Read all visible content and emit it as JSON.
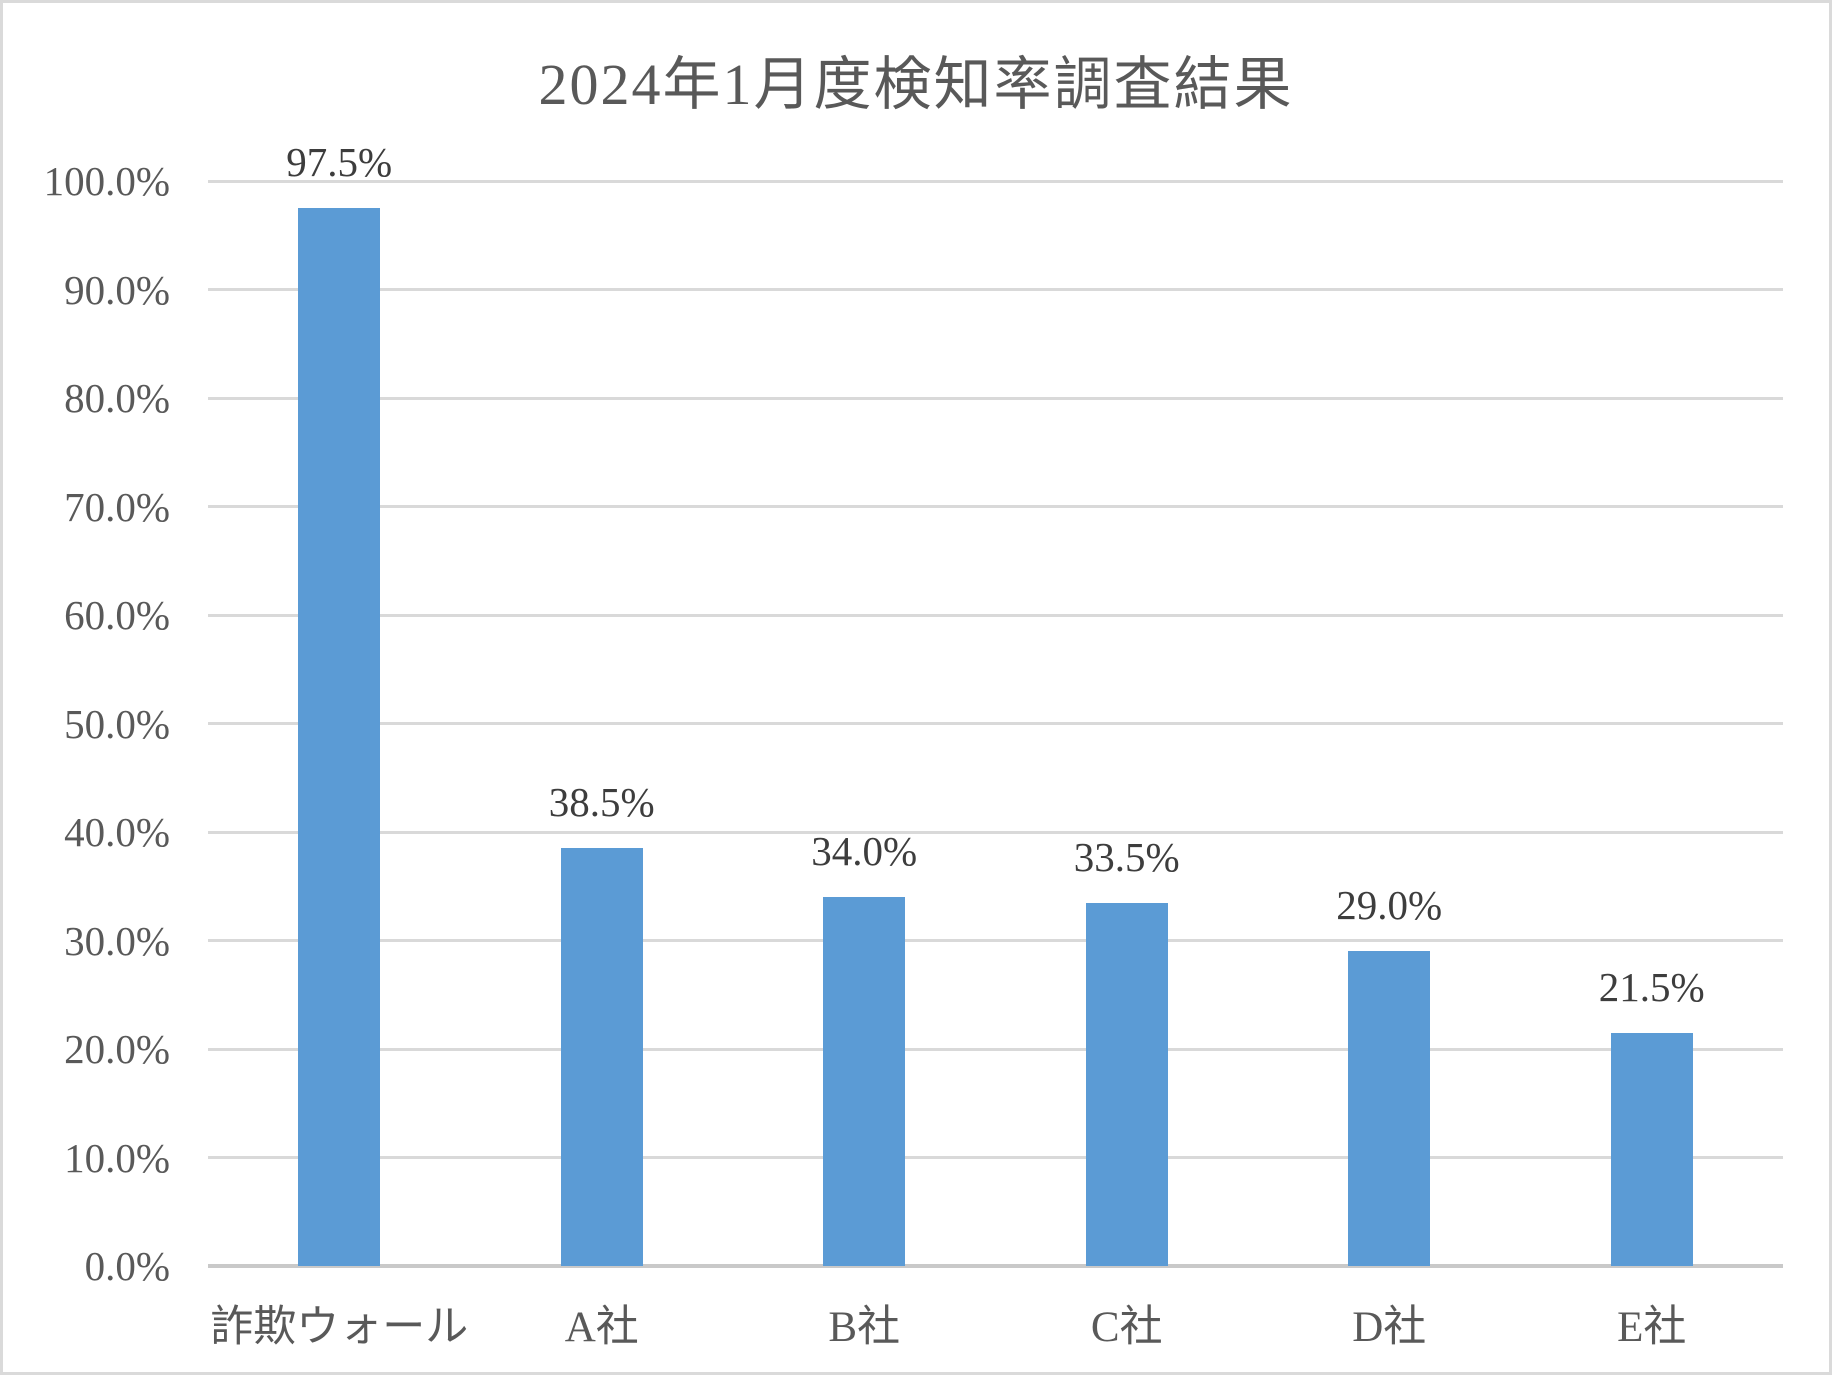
{
  "chart_data": {
    "type": "bar",
    "title": "2024年1月度検知率調査結果",
    "categories": [
      "詐欺ウォール",
      "A社",
      "B社",
      "C社",
      "D社",
      "E社"
    ],
    "values": [
      97.5,
      38.5,
      34.0,
      33.5,
      29.0,
      21.5
    ],
    "data_labels": [
      "97.5%",
      "38.5%",
      "34.0%",
      "33.5%",
      "29.0%",
      "21.5%"
    ],
    "y_axis": {
      "min": 0,
      "max": 100,
      "step": 10,
      "tick_labels": [
        "0.0%",
        "10.0%",
        "20.0%",
        "30.0%",
        "40.0%",
        "50.0%",
        "60.0%",
        "70.0%",
        "80.0%",
        "90.0%",
        "100.0%"
      ]
    },
    "xlabel": "",
    "ylabel": "",
    "grid": "horizontal",
    "legend": "none",
    "series_count": 1
  },
  "colors": {
    "bar": "#5B9BD5",
    "gridline": "#D9D9D9",
    "axis_line": "#C9C9C9",
    "title_and_axis_text": "#595959",
    "data_label_text": "#3D3D3D",
    "frame_border": "#DADADA",
    "background": "#FFFFFF"
  }
}
